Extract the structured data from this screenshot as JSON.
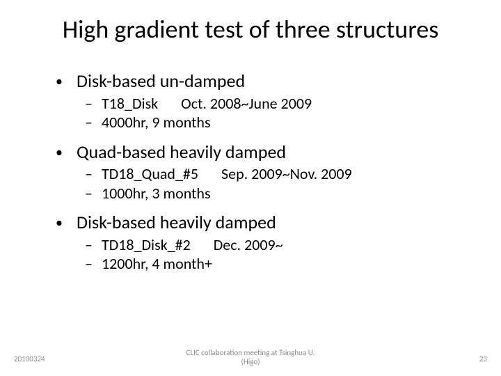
{
  "title": "High gradient test of three structures",
  "sections": [
    {
      "heading": "Disk-based un-damped",
      "items": [
        "T18_Disk  Oct. 2008~June 2009",
        "4000hr, 9 months"
      ]
    },
    {
      "heading": "Quad-based heavily damped",
      "items": [
        "TD18_Quad_#5  Sep. 2009~Nov. 2009",
        "1000hr, 3 months"
      ]
    },
    {
      "heading": "Disk-based heavily damped",
      "items": [
        "TD18_Disk_#2  Dec. 2009~",
        "1200hr, 4 month+"
      ]
    }
  ],
  "footer": {
    "date": "20100324",
    "center_line1": "CLIC collaboration meeting at Tsinghua U.",
    "center_line2": "(Higo)",
    "page": "23"
  },
  "style": {
    "background_color": "#ffffff",
    "text_color": "#000000",
    "footer_color": "#8a8a8a",
    "title_fontsize": 36,
    "l1_fontsize": 26,
    "l2_fontsize": 22,
    "footer_fontsize": 11,
    "l1_bullet": "•",
    "l2_bullet": "–"
  }
}
